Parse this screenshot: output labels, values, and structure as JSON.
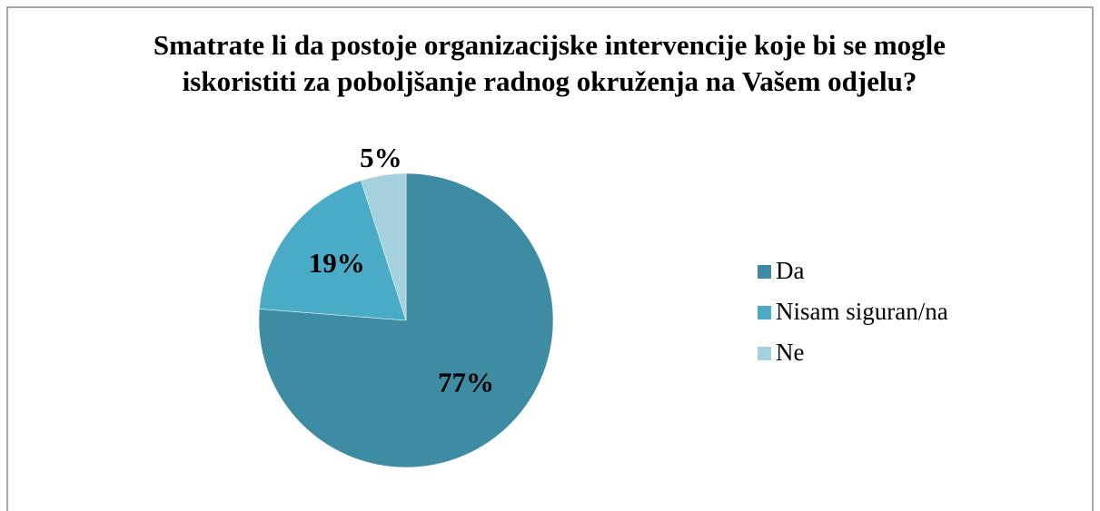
{
  "chart_data": {
    "type": "pie",
    "title": "Smatrate li da postoje organizacijske intervencije koje bi se mogle iskoristiti za poboljšanje radnog okruženja na Vašem odjelu?",
    "categories": [
      "Da",
      "Nisam siguran/na",
      "Ne"
    ],
    "values": [
      77,
      19,
      5
    ],
    "value_labels": [
      "77%",
      "19%",
      "5%"
    ],
    "colors": [
      "#3d8ca3",
      "#4aabc6",
      "#a5d0dd"
    ],
    "legend": "right"
  }
}
